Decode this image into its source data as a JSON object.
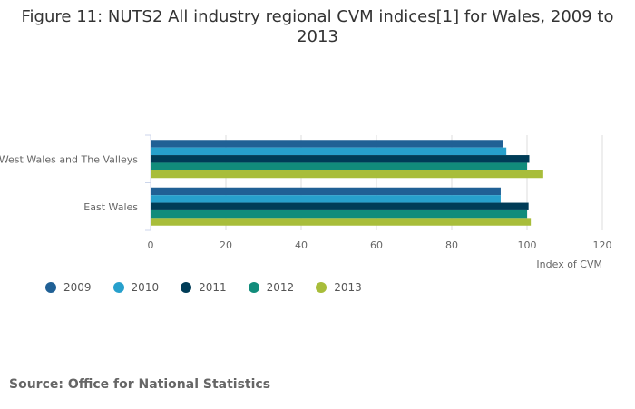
{
  "chart_data": {
    "type": "bar",
    "orientation": "horizontal",
    "title": "Figure 11: NUTS2 All industry regional CVM indices[1] for Wales, 2009 to 2013",
    "categories": [
      "West Wales and The Valleys",
      "East Wales"
    ],
    "series": [
      {
        "name": "2009",
        "color": "#206095",
        "values": [
          93.5,
          93.0
        ]
      },
      {
        "name": "2010",
        "color": "#27a0cc",
        "values": [
          94.5,
          93.0
        ]
      },
      {
        "name": "2011",
        "color": "#003c57",
        "values": [
          100.6,
          100.4
        ]
      },
      {
        "name": "2012",
        "color": "#118c7b",
        "values": [
          100.0,
          100.0
        ]
      },
      {
        "name": "2013",
        "color": "#a8bd3a",
        "values": [
          104.3,
          101.0
        ]
      }
    ],
    "xlabel": "Index of CVM",
    "xlim": [
      0,
      120
    ],
    "xticks": [
      "0",
      "20",
      "40",
      "60",
      "80",
      "100",
      "120"
    ],
    "grid": true,
    "legend": "bottom-left"
  },
  "source": "Source: Office for National Statistics"
}
